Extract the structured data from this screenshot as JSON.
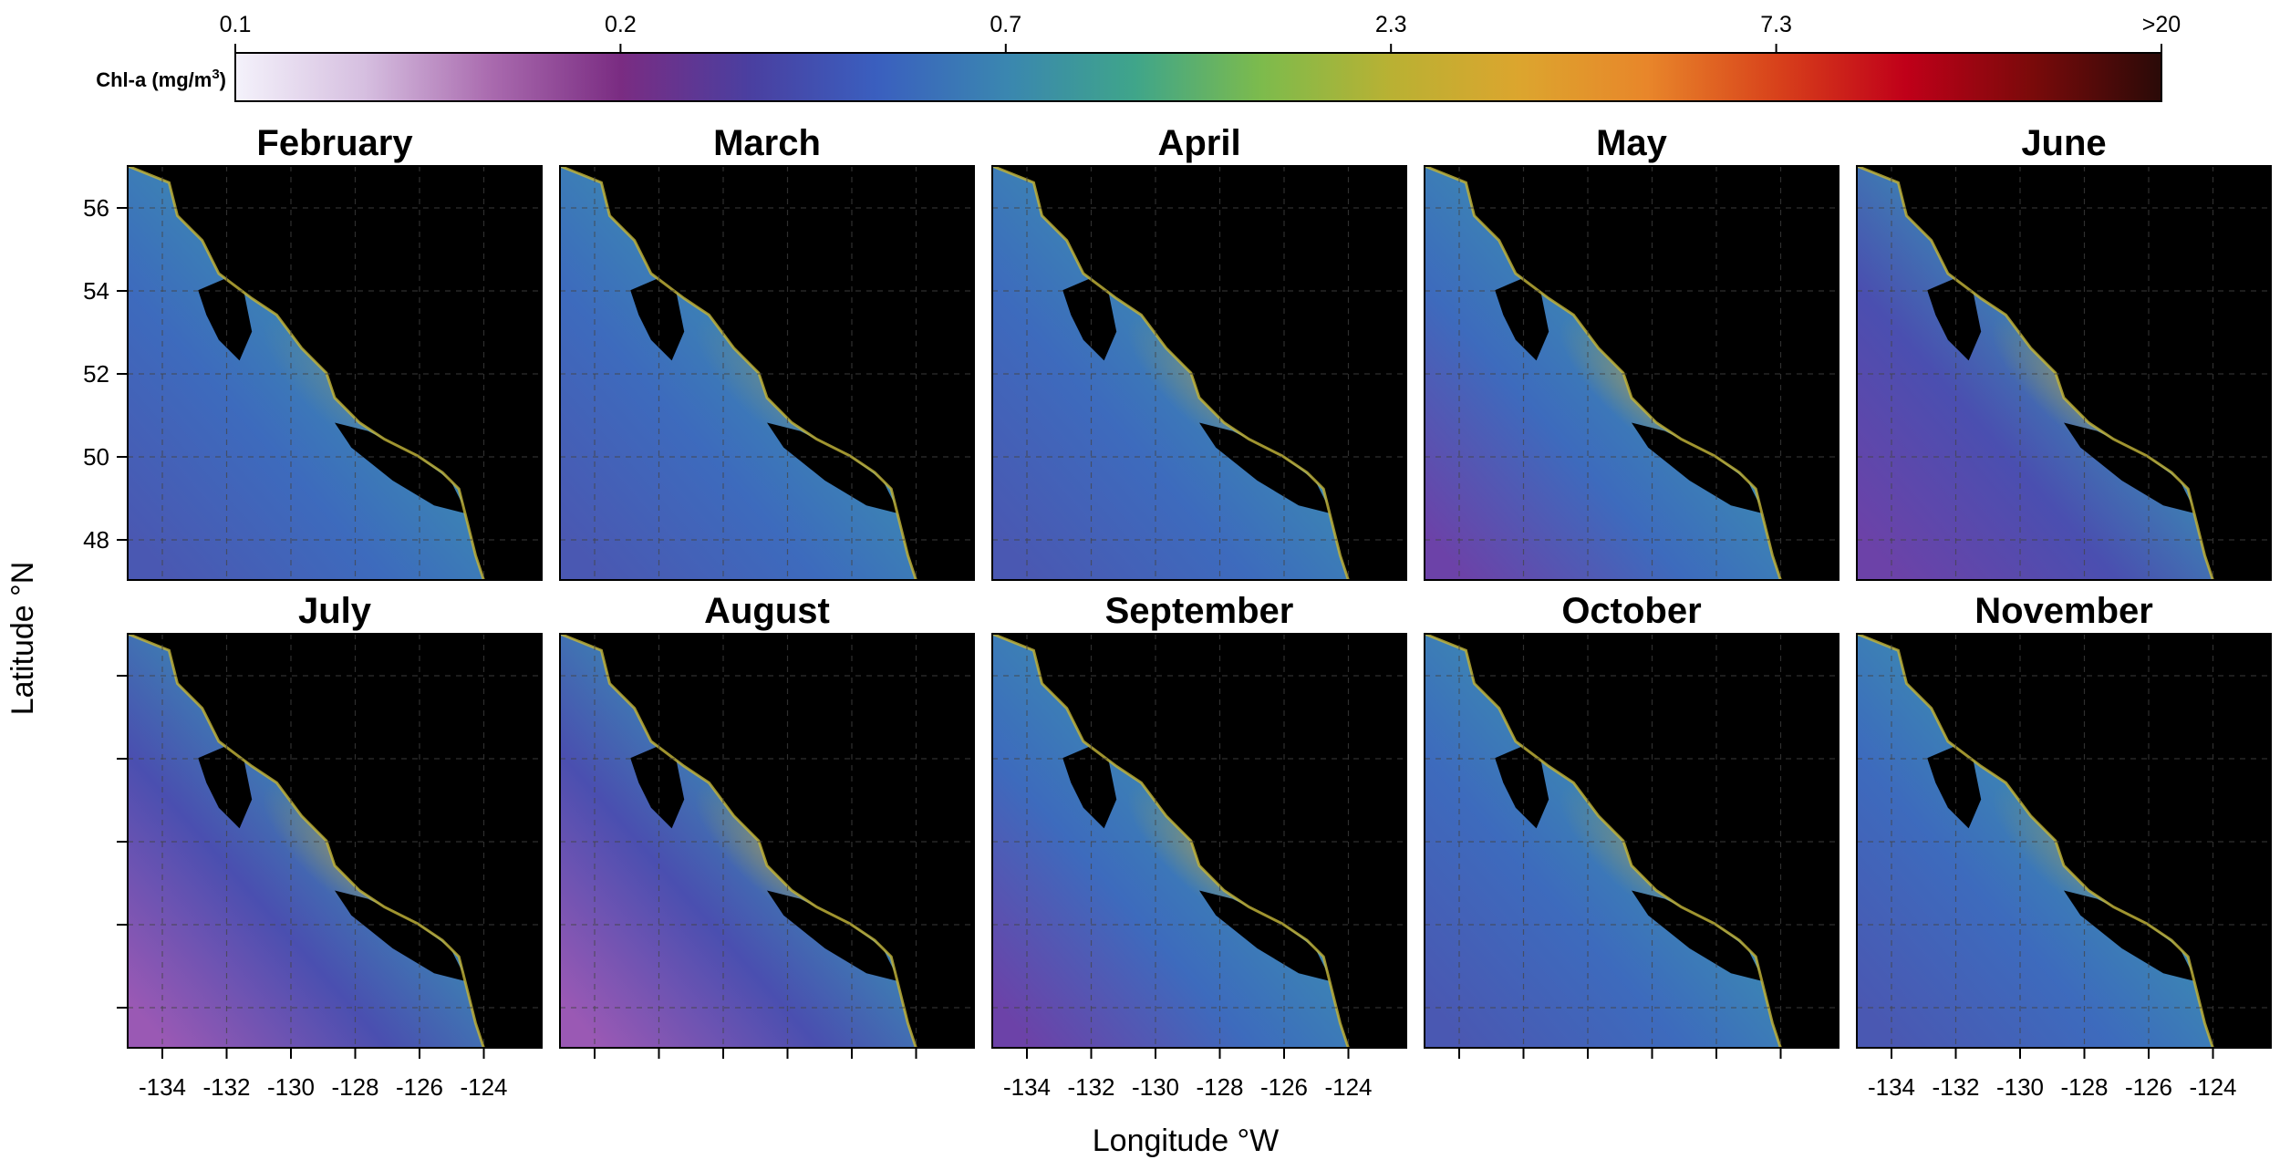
{
  "colorbar": {
    "label": "Chl-a (mg/m",
    "label_sup": "3",
    "label_close": ")",
    "ticks": [
      "0.1",
      "0.2",
      "0.7",
      "2.3",
      "7.3",
      ">20"
    ],
    "colors": [
      "#f4f2fb",
      "#d6bfe0",
      "#a96aae",
      "#7a2c82",
      "#4a3fa0",
      "#3a5fbf",
      "#3a86b0",
      "#3fa58a",
      "#7dbb4c",
      "#b9b133",
      "#dca52e",
      "#e8862a",
      "#d8421b",
      "#c00019",
      "#7a0a0a",
      "#2a0a08"
    ]
  },
  "axes": {
    "ylabel": "Latitude °N",
    "xlabel": "Longitude °W",
    "lat_ticks": [
      "56",
      "54",
      "52",
      "50",
      "48"
    ],
    "lon_ticks": [
      "-134",
      "-132",
      "-130",
      "-128",
      "-126",
      "-124"
    ]
  },
  "panels": [
    {
      "month": "February",
      "bloom": 0.25,
      "offshore": 0.42,
      "south_low": 0.3
    },
    {
      "month": "March",
      "bloom": 0.3,
      "offshore": 0.4,
      "south_low": 0.32
    },
    {
      "month": "April",
      "bloom": 0.45,
      "offshore": 0.38,
      "south_low": 0.4
    },
    {
      "month": "May",
      "bloom": 0.6,
      "offshore": 0.42,
      "south_low": 0.45
    },
    {
      "month": "June",
      "bloom": 0.55,
      "offshore": 0.4,
      "south_low": 0.5
    },
    {
      "month": "July",
      "bloom": 0.55,
      "offshore": 0.36,
      "south_low": 0.7
    },
    {
      "month": "August",
      "bloom": 0.6,
      "offshore": 0.36,
      "south_low": 0.65
    },
    {
      "month": "September",
      "bloom": 0.58,
      "offshore": 0.4,
      "south_low": 0.45
    },
    {
      "month": "October",
      "bloom": 0.45,
      "offshore": 0.48,
      "south_low": 0.25
    },
    {
      "month": "November",
      "bloom": 0.4,
      "offshore": 0.5,
      "south_low": 0.2
    }
  ]
}
